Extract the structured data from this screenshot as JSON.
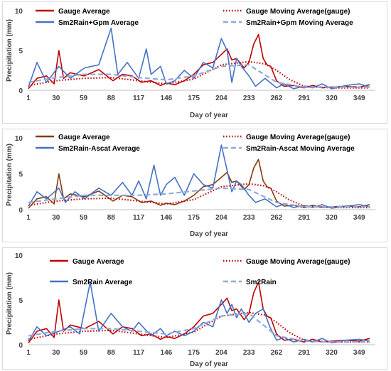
{
  "chart_data": [
    {
      "type": "line",
      "xlabel": "Day of year",
      "ylabel": "Precipitation (mm)",
      "ylim": [
        0,
        10
      ],
      "yticks": [
        "0",
        "5",
        "10"
      ],
      "xticks": [
        "1",
        "30",
        "59",
        "88",
        "117",
        "146",
        "175",
        "204",
        "233",
        "262",
        "291",
        "320",
        "349"
      ],
      "xlim": [
        1,
        366
      ],
      "legend": [
        "Gauge Average",
        "Gauge Moving  Average(gauge)",
        "Sm2Rain+Gpm Average",
        "Sm2Rain+Gpm Moving  Average"
      ],
      "series": [
        {
          "name": "Gauge Average",
          "color": "#c00000",
          "style": "solid",
          "x": [
            1,
            10,
            20,
            28,
            33,
            38,
            45,
            60,
            75,
            90,
            100,
            110,
            120,
            130,
            140,
            146,
            155,
            165,
            175,
            185,
            195,
            204,
            210,
            215,
            220,
            228,
            233,
            238,
            243,
            248,
            252,
            256,
            262,
            270,
            280,
            291,
            300,
            310,
            320,
            335,
            349,
            360
          ],
          "values": [
            0.2,
            1.5,
            1.8,
            0.8,
            5.0,
            1.5,
            2.2,
            1.8,
            2.6,
            1.2,
            2.0,
            1.8,
            1.0,
            1.2,
            0.6,
            0.9,
            0.7,
            1.2,
            2.0,
            3.2,
            3.5,
            4.5,
            5.2,
            3.8,
            4.0,
            2.8,
            3.5,
            5.8,
            7.0,
            4.0,
            3.2,
            3.0,
            1.2,
            0.5,
            0.6,
            0.3,
            0.6,
            0.3,
            0.4,
            0.5,
            0.4,
            0.7
          ]
        },
        {
          "name": "Gauge Moving  Average(gauge)",
          "color": "#c00000",
          "style": "dotted",
          "x": [
            1,
            30,
            59,
            88,
            117,
            146,
            175,
            204,
            233,
            250,
            262,
            275,
            291,
            320,
            349,
            360
          ],
          "values": [
            0.6,
            1.2,
            1.5,
            1.6,
            1.2,
            0.8,
            1.4,
            3.2,
            3.6,
            3.3,
            2.5,
            1.4,
            0.5,
            0.3,
            0.3,
            0.3
          ]
        },
        {
          "name": "Sm2Rain+Gpm Average",
          "color": "#4472c4",
          "style": "solid",
          "x": [
            1,
            10,
            20,
            33,
            45,
            60,
            75,
            88,
            95,
            105,
            117,
            125,
            130,
            140,
            146,
            155,
            165,
            175,
            185,
            195,
            204,
            210,
            215,
            220,
            225,
            233,
            240,
            250,
            262,
            270,
            280,
            291,
            300,
            310,
            320,
            335,
            349,
            360
          ],
          "values": [
            0.4,
            3.5,
            1.0,
            3.0,
            1.5,
            2.8,
            3.2,
            7.8,
            2.0,
            3.5,
            1.5,
            5.2,
            2.0,
            3.0,
            0.8,
            1.2,
            2.5,
            1.5,
            3.5,
            2.8,
            6.5,
            5.0,
            1.0,
            4.0,
            3.0,
            1.8,
            0.5,
            1.5,
            0.3,
            0.8,
            0.2,
            0.5,
            0.3,
            0.8,
            0.2,
            0.6,
            0.8,
            0.4
          ]
        },
        {
          "name": "Sm2Rain+Gpm Moving  Average",
          "color": "#8faadc",
          "style": "dashed",
          "x": [
            1,
            30,
            59,
            88,
            117,
            146,
            175,
            204,
            233,
            262,
            291,
            320,
            349,
            360
          ],
          "values": [
            1.0,
            1.6,
            2.0,
            2.0,
            1.6,
            1.3,
            1.8,
            3.0,
            3.2,
            1.0,
            0.4,
            0.4,
            0.4,
            0.4
          ]
        }
      ]
    },
    {
      "type": "line",
      "xlabel": "Day of year",
      "ylabel": "Precipitation (mm)",
      "ylim": [
        0,
        10
      ],
      "yticks": [
        "0",
        "5",
        "10"
      ],
      "xticks": [
        "1",
        "30",
        "59",
        "88",
        "117",
        "146",
        "175",
        "204",
        "233",
        "262",
        "291",
        "320",
        "349"
      ],
      "xlim": [
        1,
        366
      ],
      "legend": [
        "Gauge Average",
        "Gauge Moving  Average(gauge)",
        "Sm2Rain-Ascat Average",
        "Sm2Rain-Ascat Moving  Average"
      ],
      "series": [
        {
          "name": "Gauge Average",
          "color": "#843c0c",
          "style": "solid",
          "x": [
            1,
            10,
            20,
            28,
            33,
            38,
            45,
            60,
            75,
            90,
            100,
            110,
            120,
            130,
            140,
            146,
            155,
            165,
            175,
            185,
            195,
            204,
            210,
            215,
            220,
            228,
            233,
            238,
            243,
            248,
            252,
            256,
            262,
            270,
            280,
            291,
            300,
            310,
            320,
            335,
            349,
            360
          ],
          "values": [
            0.2,
            1.5,
            1.8,
            0.8,
            5.0,
            1.5,
            2.2,
            1.8,
            2.6,
            1.2,
            2.0,
            1.8,
            1.0,
            1.2,
            0.6,
            0.9,
            0.7,
            1.2,
            2.0,
            3.2,
            3.5,
            4.5,
            5.2,
            3.8,
            4.0,
            2.8,
            3.5,
            5.8,
            7.0,
            4.0,
            3.2,
            3.0,
            1.2,
            0.5,
            0.6,
            0.3,
            0.6,
            0.3,
            0.4,
            0.5,
            0.4,
            0.7
          ]
        },
        {
          "name": "Gauge Moving  Average(gauge)",
          "color": "#c00000",
          "style": "dotted",
          "x": [
            1,
            30,
            59,
            88,
            117,
            146,
            175,
            204,
            233,
            250,
            262,
            275,
            291,
            320,
            349,
            360
          ],
          "values": [
            0.6,
            1.2,
            1.5,
            1.6,
            1.2,
            0.8,
            1.4,
            3.2,
            3.6,
            3.3,
            2.5,
            1.4,
            0.5,
            0.3,
            0.3,
            0.3
          ]
        },
        {
          "name": "Sm2Rain-Ascat Average",
          "color": "#4472c4",
          "style": "solid",
          "x": [
            1,
            10,
            20,
            33,
            40,
            50,
            60,
            75,
            88,
            100,
            110,
            117,
            125,
            133,
            140,
            146,
            155,
            165,
            175,
            185,
            195,
            204,
            210,
            215,
            220,
            225,
            233,
            240,
            250,
            262,
            270,
            280,
            291,
            300,
            310,
            320,
            335,
            349,
            360
          ],
          "values": [
            0.5,
            2.5,
            1.5,
            3.0,
            1.0,
            2.5,
            1.5,
            3.0,
            2.0,
            3.8,
            2.0,
            4.0,
            1.5,
            6.2,
            2.0,
            3.5,
            4.5,
            2.0,
            5.0,
            3.5,
            3.0,
            9.0,
            5.5,
            2.5,
            4.0,
            3.5,
            2.0,
            1.0,
            1.5,
            0.4,
            0.8,
            0.3,
            0.6,
            0.3,
            0.7,
            0.2,
            0.5,
            0.7,
            0.4
          ]
        },
        {
          "name": "Sm2Rain-Ascat Moving  Average",
          "color": "#8faadc",
          "style": "dashed",
          "x": [
            1,
            30,
            59,
            88,
            117,
            146,
            175,
            204,
            233,
            262,
            291,
            320,
            349,
            360
          ],
          "values": [
            1.0,
            1.5,
            2.0,
            2.0,
            2.0,
            2.2,
            2.6,
            3.0,
            2.8,
            1.0,
            0.4,
            0.4,
            0.4,
            0.4
          ]
        }
      ]
    },
    {
      "type": "line",
      "xlabel": "Day of year",
      "ylabel": "Precipitation (mm)",
      "ylim": [
        0,
        10
      ],
      "yticks": [
        "0",
        "5",
        "10"
      ],
      "xticks": [
        "1",
        "30",
        "59",
        "88",
        "117",
        "146",
        "175",
        "204",
        "233",
        "262",
        "291",
        "320",
        "349"
      ],
      "xlim": [
        1,
        366
      ],
      "legend": [
        "Gauge Average",
        "Gauge Moving  Average(gauge)",
        "Sm2Rain Average",
        "Sm2Rain"
      ],
      "series": [
        {
          "name": "Gauge Average",
          "color": "#c00000",
          "style": "solid",
          "x": [
            1,
            10,
            20,
            28,
            33,
            38,
            45,
            60,
            75,
            90,
            100,
            110,
            120,
            130,
            140,
            146,
            155,
            165,
            175,
            185,
            195,
            204,
            210,
            215,
            220,
            228,
            233,
            238,
            243,
            248,
            252,
            256,
            262,
            270,
            280,
            291,
            300,
            310,
            320,
            335,
            349,
            360
          ],
          "values": [
            0.2,
            1.5,
            1.8,
            0.8,
            5.0,
            1.5,
            2.2,
            1.8,
            2.6,
            1.2,
            2.0,
            1.8,
            1.0,
            1.2,
            0.6,
            0.9,
            0.7,
            1.2,
            2.0,
            3.2,
            3.5,
            4.5,
            5.2,
            3.8,
            4.0,
            2.8,
            3.5,
            5.8,
            7.0,
            4.0,
            3.2,
            3.0,
            1.2,
            0.5,
            0.6,
            0.3,
            0.6,
            0.3,
            0.4,
            0.5,
            0.4,
            0.7
          ]
        },
        {
          "name": "Gauge Moving  Average(gauge)",
          "color": "#c00000",
          "style": "dotted",
          "x": [
            1,
            30,
            59,
            88,
            117,
            146,
            175,
            204,
            233,
            250,
            262,
            275,
            291,
            320,
            349,
            360
          ],
          "values": [
            0.6,
            1.2,
            1.5,
            1.6,
            1.2,
            0.8,
            1.4,
            3.2,
            3.6,
            3.3,
            2.5,
            1.4,
            0.5,
            0.3,
            0.3,
            0.3
          ]
        },
        {
          "name": "Sm2Rain Average",
          "color": "#4472c4",
          "style": "solid",
          "x": [
            1,
            10,
            20,
            33,
            45,
            55,
            66,
            75,
            88,
            100,
            110,
            117,
            130,
            140,
            146,
            155,
            165,
            175,
            185,
            195,
            204,
            210,
            215,
            220,
            225,
            233,
            240,
            248,
            255,
            262,
            270,
            280,
            291,
            300,
            310,
            320,
            335,
            349,
            360
          ],
          "values": [
            0.4,
            2.0,
            1.0,
            1.5,
            2.0,
            1.2,
            7.0,
            1.5,
            3.5,
            2.0,
            1.5,
            2.5,
            1.0,
            1.8,
            1.0,
            1.5,
            1.0,
            1.5,
            2.5,
            2.0,
            5.0,
            3.5,
            4.5,
            3.0,
            4.0,
            2.5,
            3.5,
            4.0,
            2.0,
            0.5,
            0.8,
            0.3,
            0.6,
            0.3,
            0.7,
            0.2,
            0.5,
            0.6,
            0.4
          ]
        },
        {
          "name": "Sm2Rain",
          "color": "#8faadc",
          "style": "dashed",
          "x": [
            1,
            30,
            59,
            88,
            117,
            146,
            175,
            204,
            233,
            262,
            291,
            320,
            349,
            360
          ],
          "values": [
            1.0,
            1.5,
            1.8,
            1.8,
            1.5,
            1.2,
            1.8,
            3.2,
            3.5,
            1.0,
            0.4,
            0.3,
            0.3,
            0.3
          ]
        }
      ]
    }
  ]
}
